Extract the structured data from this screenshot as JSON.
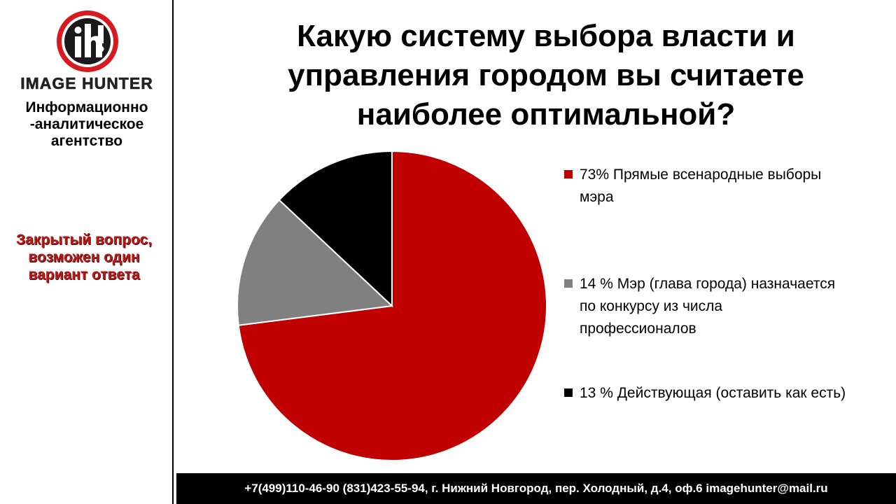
{
  "brand": {
    "logo_text": "IMAGE HUNTER",
    "agency_lines": [
      "Информационно",
      "-аналитическое",
      "агентство"
    ]
  },
  "question_type_lines": [
    "Закрытый вопрос,",
    "возможен один",
    "вариант ответа"
  ],
  "footer": {
    "contacts": "+7(499)110-46-90 (831)423-55-94,  г. Нижний Новгород,  пер. Холодный,  д.4, оф.6 imagehunter@mail.ru"
  },
  "chart_data": {
    "type": "pie",
    "title_lines": [
      "Какую систему выбора власти и",
      "управления городом вы считаете",
      "наиболее оптимальной?"
    ],
    "legend_position": "right",
    "slices": [
      {
        "label_lines": [
          "73% Прямые всенародные выборы",
          "мэра"
        ],
        "value": 73,
        "color": "#c00000"
      },
      {
        "label_lines": [
          "14 % Мэр (глава города) назначается",
          "по конкурсу из числа",
          "профессионалов"
        ],
        "value": 14,
        "color": "#808080"
      },
      {
        "label_lines": [
          "13 % Действующая (оставить как есть)"
        ],
        "value": 13,
        "color": "#000000"
      }
    ]
  }
}
